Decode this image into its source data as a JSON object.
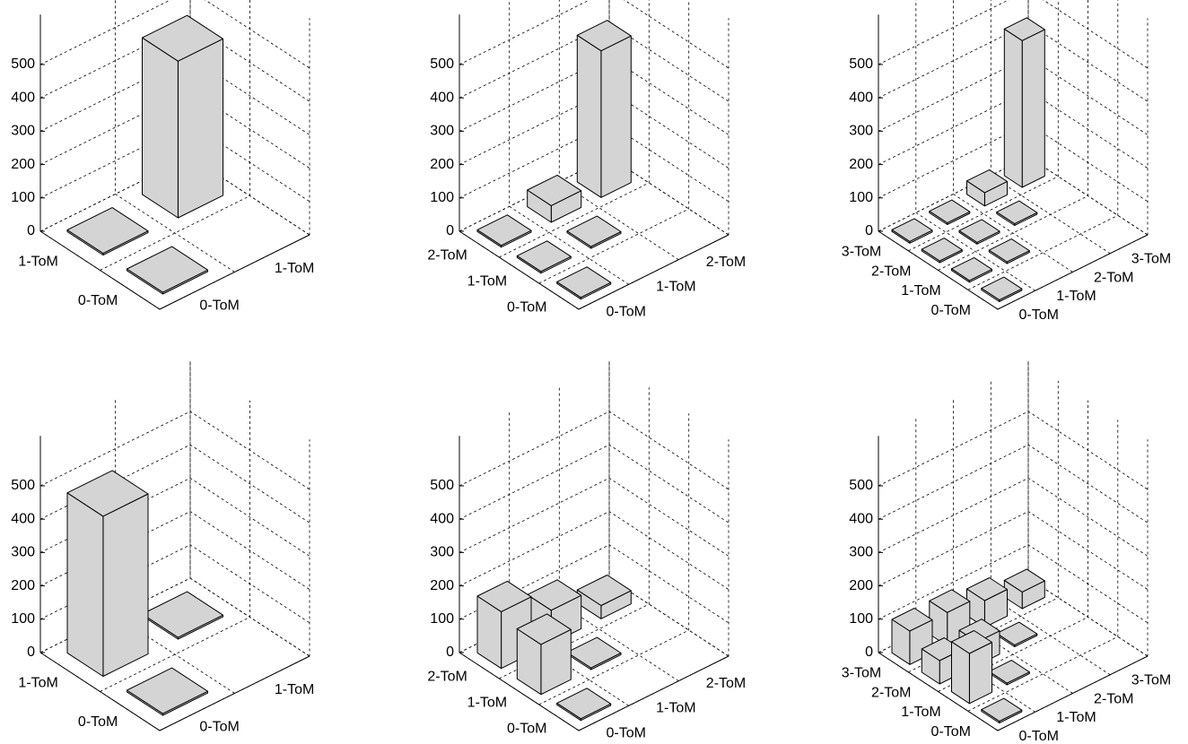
{
  "chart_data": [
    {
      "type": "bar3d",
      "row_categories": [
        "0-ToM",
        "1-ToM"
      ],
      "col_categories": [
        "0-ToM",
        "1-ToM"
      ],
      "values": [
        [
          5,
          null
        ],
        [
          5,
          470
        ]
      ],
      "zlim": [
        0,
        650
      ],
      "zticks": [
        0,
        100,
        200,
        300,
        400,
        500
      ]
    },
    {
      "type": "bar3d",
      "row_categories": [
        "0-ToM",
        "1-ToM",
        "2-ToM"
      ],
      "col_categories": [
        "0-ToM",
        "1-ToM",
        "2-ToM"
      ],
      "values": [
        [
          5,
          null,
          null
        ],
        [
          5,
          5,
          null
        ],
        [
          5,
          50,
          440
        ]
      ],
      "zlim": [
        0,
        650
      ],
      "zticks": [
        0,
        100,
        200,
        300,
        400,
        500
      ]
    },
    {
      "type": "bar3d",
      "row_categories": [
        "0-ToM",
        "1-ToM",
        "2-ToM",
        "3-ToM"
      ],
      "col_categories": [
        "0-ToM",
        "1-ToM",
        "2-ToM",
        "3-ToM"
      ],
      "values": [
        [
          5,
          null,
          null,
          null
        ],
        [
          5,
          5,
          null,
          null
        ],
        [
          5,
          5,
          5,
          null
        ],
        [
          5,
          5,
          40,
          440
        ]
      ],
      "zlim": [
        0,
        650
      ],
      "zticks": [
        0,
        100,
        200,
        300,
        400,
        500
      ]
    },
    {
      "type": "bar3d",
      "row_categories": [
        "0-ToM",
        "1-ToM"
      ],
      "col_categories": [
        "0-ToM",
        "1-ToM"
      ],
      "values": [
        [
          5,
          null
        ],
        [
          480,
          5
        ]
      ],
      "zlim": [
        0,
        650
      ],
      "zticks": [
        0,
        100,
        200,
        300,
        400,
        500
      ]
    },
    {
      "type": "bar3d",
      "row_categories": [
        "0-ToM",
        "1-ToM",
        "2-ToM"
      ],
      "col_categories": [
        "0-ToM",
        "1-ToM",
        "2-ToM"
      ],
      "values": [
        [
          5,
          null,
          null
        ],
        [
          150,
          5,
          null
        ],
        [
          170,
          100,
          40
        ]
      ],
      "zlim": [
        0,
        650
      ],
      "zticks": [
        0,
        100,
        200,
        300,
        400,
        500
      ]
    },
    {
      "type": "bar3d",
      "row_categories": [
        "0-ToM",
        "1-ToM",
        "2-ToM",
        "3-ToM"
      ],
      "col_categories": [
        "0-ToM",
        "1-ToM",
        "2-ToM",
        "3-ToM"
      ],
      "values": [
        [
          5,
          null,
          null,
          null
        ],
        [
          150,
          5,
          null,
          null
        ],
        [
          70,
          70,
          5,
          null
        ],
        [
          100,
          100,
          80,
          50
        ]
      ],
      "zlim": [
        0,
        650
      ],
      "zticks": [
        0,
        100,
        200,
        300,
        400,
        500
      ]
    }
  ]
}
